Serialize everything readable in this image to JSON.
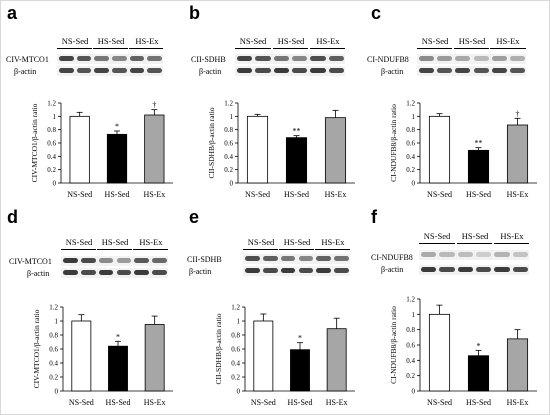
{
  "figure": {
    "colors": {
      "NS-Sed": "#ffffff",
      "HS-Sed": "#000000",
      "HS-Ex": "#a6a6a6",
      "outline": "#000000"
    }
  },
  "chart_data": [
    {
      "panel": "a",
      "type": "bar",
      "blot_labels": [
        "CIV-MTCO1",
        "β-actin"
      ],
      "group_labels": [
        "NS-Sed",
        "HS-Sed",
        "HS-Ex"
      ],
      "categories": [
        "NS-Sed",
        "HS-Sed",
        "HS-Ex"
      ],
      "values": [
        1.0,
        0.73,
        1.02
      ],
      "errors": [
        0.06,
        0.05,
        0.08
      ],
      "significance": [
        "",
        "*",
        "†"
      ],
      "ylabel": "CIV-MTCO1/β-actin ratio",
      "ylim": [
        0,
        1.2
      ],
      "yticks": [
        "0",
        "0.2",
        "0.4",
        "0.6",
        "0.8",
        "1",
        "1.2"
      ],
      "band_intensity": {
        "target": [
          0.8,
          0.55,
          0.65
        ],
        "actin": [
          0.8,
          0.8,
          0.8
        ]
      }
    },
    {
      "panel": "b",
      "type": "bar",
      "blot_labels": [
        "CII-SDHB",
        "β-actin"
      ],
      "group_labels": [
        "NS-Sed",
        "HS-Sed",
        "HS-Ex"
      ],
      "categories": [
        "NS-Sed",
        "HS-Sed",
        "HS-Ex"
      ],
      "values": [
        1.0,
        0.68,
        0.98
      ],
      "errors": [
        0.03,
        0.03,
        0.11
      ],
      "significance": [
        "",
        "**",
        ""
      ],
      "ylabel": "CII-SDHB/β-actin ratio",
      "ylim": [
        0,
        1.2
      ],
      "yticks": [
        "0",
        "0.2",
        "0.4",
        "0.6",
        "0.8",
        "1",
        "1.2"
      ],
      "band_intensity": {
        "target": [
          0.8,
          0.55,
          0.75
        ],
        "actin": [
          0.85,
          0.85,
          0.85
        ]
      }
    },
    {
      "panel": "c",
      "type": "bar",
      "blot_labels": [
        "CI-NDUFB8",
        "β-actin"
      ],
      "group_labels": [
        "NS-Sed",
        "HS-Sed",
        "HS-Ex"
      ],
      "categories": [
        "NS-Sed",
        "HS-Sed",
        "HS-Ex"
      ],
      "values": [
        1.0,
        0.49,
        0.87
      ],
      "errors": [
        0.04,
        0.04,
        0.1
      ],
      "significance": [
        "",
        "**",
        "†"
      ],
      "ylabel": "CI-NDUFB8/β-actin ratio",
      "ylim": [
        0,
        1.2
      ],
      "yticks": [
        "0",
        "0.2",
        "0.4",
        "0.6",
        "0.8",
        "1",
        "1.2"
      ],
      "band_intensity": {
        "target": [
          0.45,
          0.3,
          0.35
        ],
        "actin": [
          0.8,
          0.8,
          0.8
        ]
      }
    },
    {
      "panel": "d",
      "type": "bar",
      "blot_labels": [
        "CIV-MTCO1",
        "β-actin"
      ],
      "group_labels": [
        "NS-Sed",
        "HS-Sed",
        "HS-Ex"
      ],
      "categories": [
        "NS-Sed",
        "HS-Sed",
        "HS-Ex"
      ],
      "values": [
        1.0,
        0.64,
        0.95
      ],
      "errors": [
        0.09,
        0.07,
        0.12
      ],
      "significance": [
        "",
        "*",
        ""
      ],
      "ylabel": "CIV-MTCO1/β-actin ratio",
      "ylim": [
        0,
        1.2
      ],
      "yticks": [
        "0",
        "0.2",
        "0.4",
        "0.6",
        "0.8",
        "1",
        "1.2"
      ],
      "band_intensity": {
        "target": [
          0.85,
          0.45,
          0.7
        ],
        "actin": [
          0.85,
          0.85,
          0.85
        ]
      }
    },
    {
      "panel": "e",
      "type": "bar",
      "blot_labels": [
        "CII-SDHB",
        "β-actin"
      ],
      "group_labels": [
        "NS-Sed",
        "HS-Sed",
        "HS-Ex"
      ],
      "categories": [
        "NS-Sed",
        "HS-Sed",
        "HS-Ex"
      ],
      "values": [
        1.0,
        0.59,
        0.89
      ],
      "errors": [
        0.1,
        0.1,
        0.15
      ],
      "significance": [
        "",
        "*",
        ""
      ],
      "ylabel": "CII-SDHB/β-actin ratio",
      "ylim": [
        0,
        1.2
      ],
      "yticks": [
        "0",
        "0.2",
        "0.4",
        "0.6",
        "0.8",
        "1",
        "1.2"
      ],
      "band_intensity": {
        "target": [
          0.75,
          0.55,
          0.65
        ],
        "actin": [
          0.85,
          0.85,
          0.85
        ]
      }
    },
    {
      "panel": "f",
      "type": "bar",
      "blot_labels": [
        "CI-NDUFB8",
        "β-actin"
      ],
      "group_labels": [
        "NS-Sed",
        "HS-Sed",
        "HS-Ex"
      ],
      "categories": [
        "NS-Sed",
        "HS-Sed",
        "HS-Ex"
      ],
      "values": [
        1.0,
        0.46,
        0.68
      ],
      "errors": [
        0.12,
        0.07,
        0.12
      ],
      "significance": [
        "",
        "*",
        ""
      ],
      "ylabel": "CI-NDUFB8/β-actin ratio",
      "ylim": [
        0,
        1.2
      ],
      "yticks": [
        "0",
        "0.2",
        "0.4",
        "0.6",
        "0.8",
        "1",
        "1.2"
      ],
      "band_intensity": {
        "target": [
          0.3,
          0.2,
          0.25
        ],
        "actin": [
          0.85,
          0.85,
          0.85
        ]
      }
    }
  ]
}
